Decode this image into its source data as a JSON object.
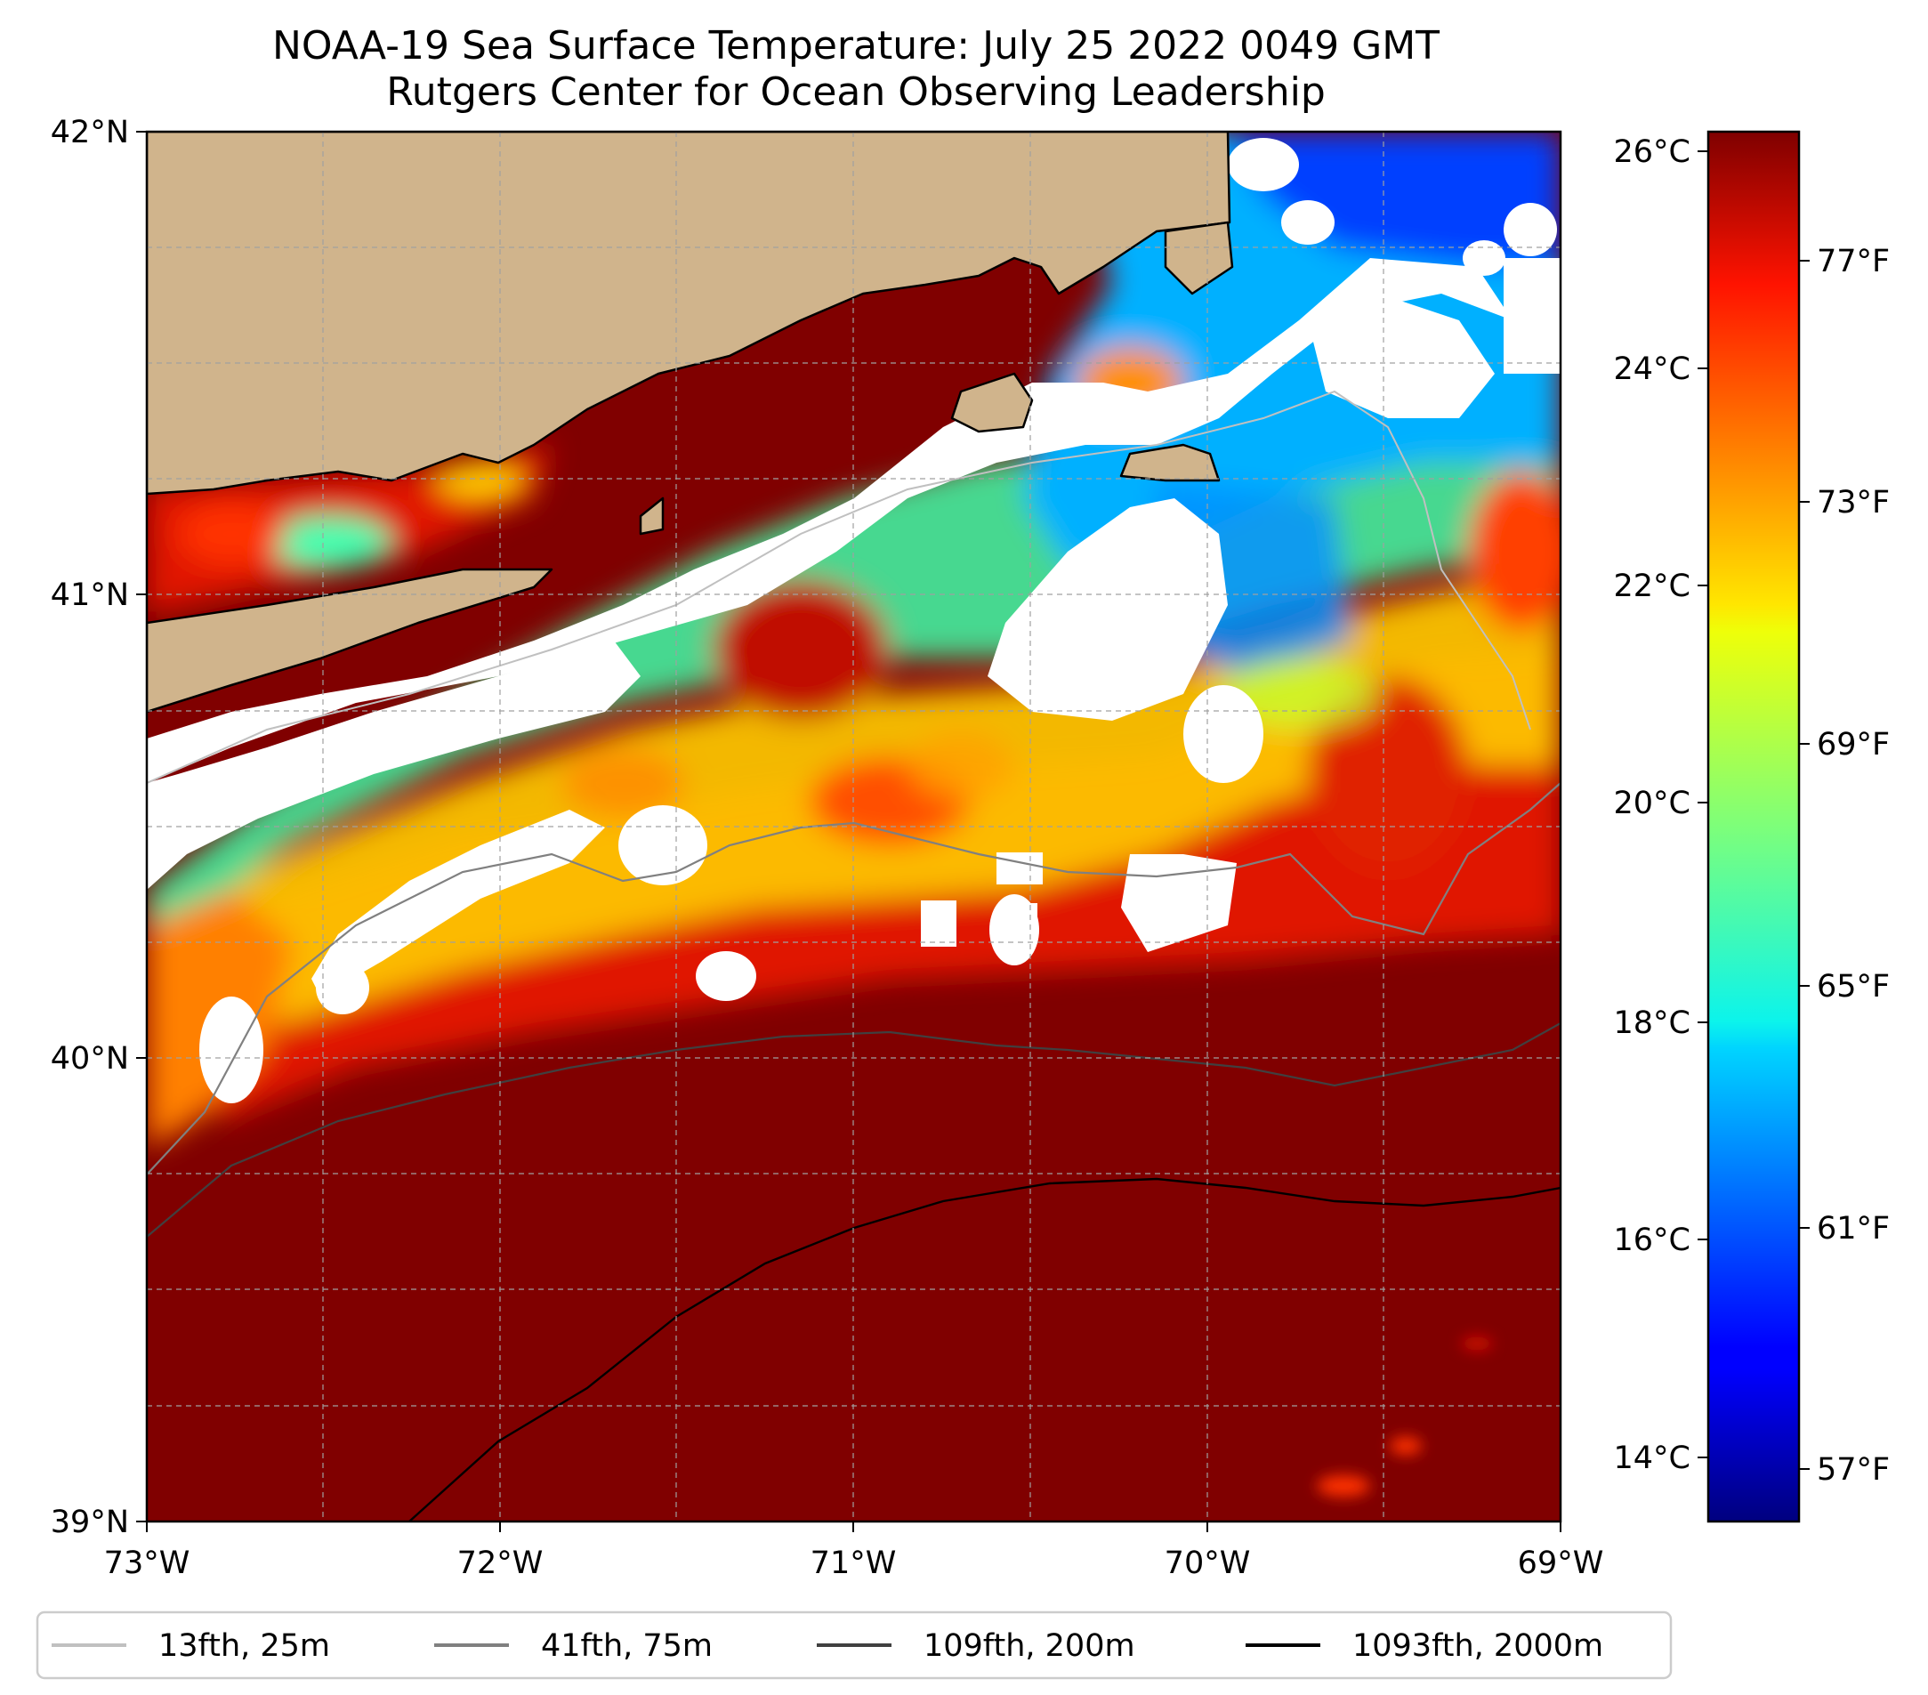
{
  "title": {
    "line1": "NOAA-19 Sea Surface Temperature: July 25 2022 0049 GMT",
    "line2": "Rutgers Center for Ocean Observing Leadership"
  },
  "map": {
    "lon_range": [
      -73,
      -69
    ],
    "lat_range": [
      39,
      42
    ],
    "lon_ticks": [
      "73°W",
      "72°W",
      "71°W",
      "70°W",
      "69°W"
    ],
    "lat_ticks": [
      "42°N",
      "41°N",
      "40°N",
      "39°N"
    ],
    "gridlines": true,
    "land_color": "#d0b48c",
    "no_data_color": "#ffffff"
  },
  "colorbar": {
    "colormap": "jet",
    "celsius_ticks": [
      "26°C",
      "24°C",
      "22°C",
      "20°C",
      "18°C",
      "16°C",
      "14°C"
    ],
    "fahrenheit_ticks": [
      "77°F",
      "73°F",
      "69°F",
      "65°F",
      "61°F",
      "57°F"
    ],
    "range_celsius": [
      13.5,
      26.5
    ]
  },
  "legend": {
    "placement": "bottom",
    "items": [
      {
        "label": "13fth, 25m",
        "color": "#c0c0c0"
      },
      {
        "label": "41fth, 75m",
        "color": "#808080"
      },
      {
        "label": "109fth, 200m",
        "color": "#404040"
      },
      {
        "label": "1093fth, 2000m",
        "color": "#000000"
      }
    ]
  }
}
